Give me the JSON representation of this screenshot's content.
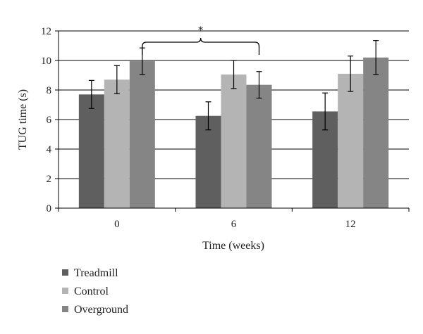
{
  "chart_data": {
    "type": "bar",
    "title": "",
    "xlabel": "Time (weeks)",
    "ylabel": "TUG time (s)",
    "categories": [
      "0",
      "6",
      "12"
    ],
    "ylim": [
      0,
      12
    ],
    "yticks": [
      0,
      2,
      4,
      6,
      8,
      10,
      12
    ],
    "grid": true,
    "legend_position": "bottom-left",
    "series": [
      {
        "name": "Treadmill",
        "color": "#5f5f5f",
        "values": [
          7.7,
          6.25,
          6.55
        ],
        "errors": [
          0.95,
          0.95,
          1.25
        ]
      },
      {
        "name": "Control",
        "color": "#b4b4b4",
        "values": [
          8.7,
          9.05,
          9.1
        ],
        "errors": [
          0.95,
          0.95,
          1.2
        ]
      },
      {
        "name": "Overground",
        "color": "#858585",
        "values": [
          9.95,
          8.35,
          10.2
        ],
        "errors": [
          0.9,
          0.9,
          1.15
        ]
      }
    ],
    "annotations": [
      {
        "text": "*",
        "type": "significance-brace",
        "from": {
          "category": "0",
          "series": "Overground"
        },
        "to": {
          "category": "6",
          "series": "Overground"
        }
      }
    ]
  }
}
